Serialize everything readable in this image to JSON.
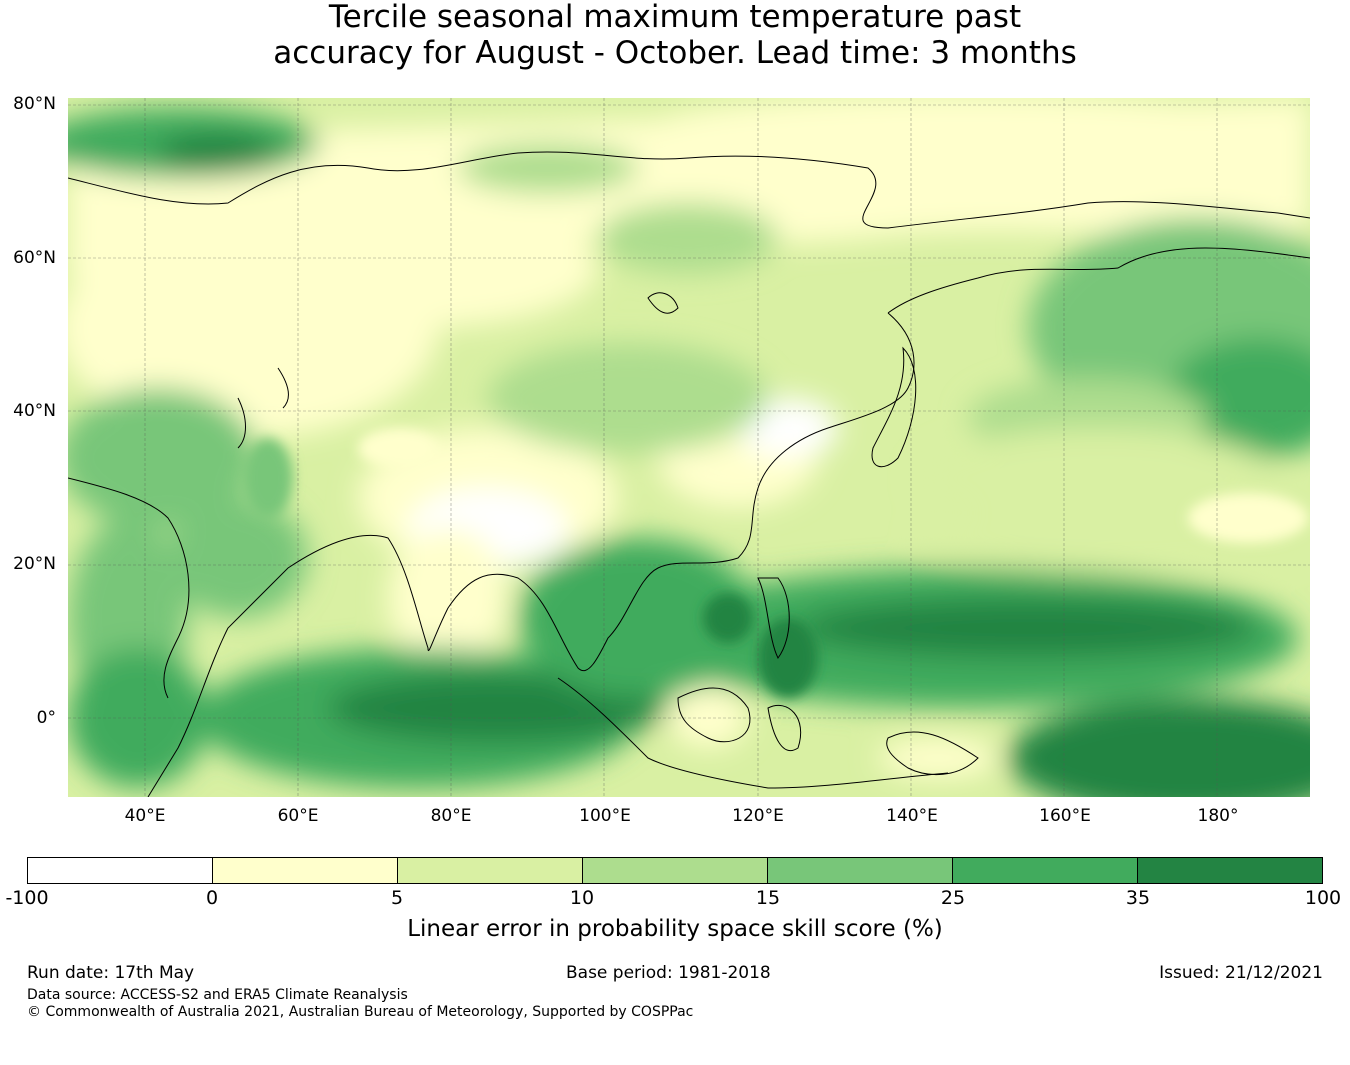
{
  "title_line1": "Tercile seasonal maximum temperature past",
  "title_line2": "accuracy for August - October. Lead time: 3 months",
  "map": {
    "lat_labels": [
      "80°N",
      "60°N",
      "40°N",
      "20°N",
      "0°"
    ],
    "lon_labels": [
      "40°E",
      "60°E",
      "80°E",
      "100°E",
      "120°E",
      "140°E",
      "160°E",
      "180°"
    ]
  },
  "colorbar": {
    "label": "Linear error in probability space skill score (%)",
    "bounds": [
      "-100",
      "0",
      "5",
      "10",
      "15",
      "25",
      "35",
      "100"
    ],
    "colors": [
      "#ffffff",
      "#ffffcc",
      "#d9f0a3",
      "#addd8e",
      "#78c679",
      "#41ab5d",
      "#238443"
    ]
  },
  "footer": {
    "run_date": "Run date: 17th May",
    "base_period": "Base period: 1981-2018",
    "issued": "Issued: 21/12/2021",
    "data_source": "Data source: ACCESS-S2 and ERA5 Climate Reanalysis",
    "copyright": "© Commonwealth of Australia 2021, Australian Bureau of Meteorology, Supported by COSPPac"
  }
}
